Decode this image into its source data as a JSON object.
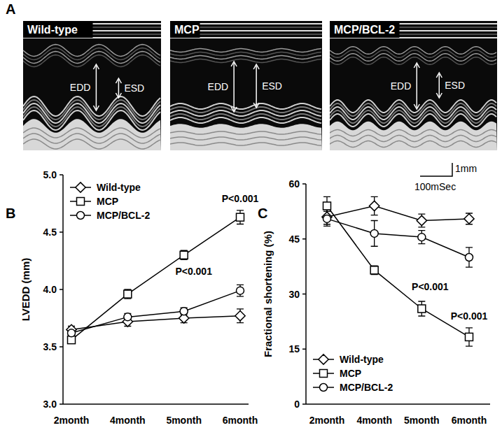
{
  "panel_a": {
    "label": "A",
    "panels": [
      {
        "title": "Wild-type",
        "labels": [
          "EDD",
          "ESD"
        ]
      },
      {
        "title": "MCP",
        "labels": [
          "EDD",
          "ESD"
        ]
      },
      {
        "title": "MCP/BCL-2",
        "labels": [
          "EDD",
          "ESD"
        ]
      }
    ],
    "scale_bar": {
      "height_label": "1mm",
      "width_label": "100mSec"
    }
  },
  "chart_data": [
    {
      "type": "line",
      "title": "B",
      "categories": [
        "2month",
        "4month",
        "5month",
        "6month"
      ],
      "y_label": "LVEDD (mm)",
      "ylim": [
        3,
        5
      ],
      "yticks": [
        {
          "value": 3,
          "label": "3.0"
        },
        {
          "value": 3.5,
          "label": "3.5"
        },
        {
          "value": 4,
          "label": "4.0"
        },
        {
          "value": 4.5,
          "label": "4.5"
        },
        {
          "value": 5,
          "label": "5.0"
        }
      ],
      "legend": "upper left",
      "series": [
        {
          "name": "Wild-type",
          "color": "#000000",
          "marker": "diamond",
          "values": [
            3.65,
            3.72,
            3.75,
            3.77
          ],
          "errors": [
            0.03,
            0.04,
            0.04,
            0.06
          ]
        },
        {
          "name": "MCP",
          "color": "#000000",
          "marker": "square",
          "values": [
            3.56,
            3.96,
            4.3,
            4.63
          ],
          "errors": [
            0.03,
            0.04,
            0.04,
            0.06
          ]
        },
        {
          "name": "MCP/BCL-2",
          "color": "#000000",
          "marker": "circle",
          "values": [
            3.62,
            3.76,
            3.81,
            3.99
          ],
          "errors": [
            0.02,
            0.03,
            0.03,
            0.05
          ]
        }
      ],
      "annotations": [
        {
          "text": "P<0.001",
          "category": "6month",
          "series": "MCP"
        },
        {
          "text": "P<0.001",
          "category": "5month",
          "series": "MCP"
        }
      ]
    },
    {
      "type": "line",
      "title": "C",
      "categories": [
        "2month",
        "4month",
        "5month",
        "6month"
      ],
      "y_label": "Fractional shortening (%)",
      "ylim": [
        0,
        60
      ],
      "yticks": [
        0,
        15,
        30,
        45,
        60
      ],
      "legend": "lower left",
      "series": [
        {
          "name": "Wild-type",
          "color": "#000000",
          "marker": "diamond",
          "values": [
            51,
            54,
            50,
            50.5
          ],
          "errors": [
            2,
            2.5,
            1.8,
            1.5
          ]
        },
        {
          "name": "MCP",
          "color": "#000000",
          "marker": "square",
          "values": [
            54,
            36.5,
            26,
            18.3
          ],
          "errors": [
            2.5,
            1.2,
            2,
            2.5
          ]
        },
        {
          "name": "MCP/BCL-2",
          "color": "#000000",
          "marker": "circle",
          "values": [
            50.5,
            46.5,
            45.5,
            40
          ],
          "errors": [
            2,
            3.5,
            1.8,
            2.7
          ]
        }
      ],
      "annotations": [
        {
          "text": "P<0.001",
          "category": "5month",
          "series": "MCP"
        },
        {
          "text": "P<0.001",
          "category": "6month",
          "series": "MCP"
        }
      ]
    }
  ]
}
